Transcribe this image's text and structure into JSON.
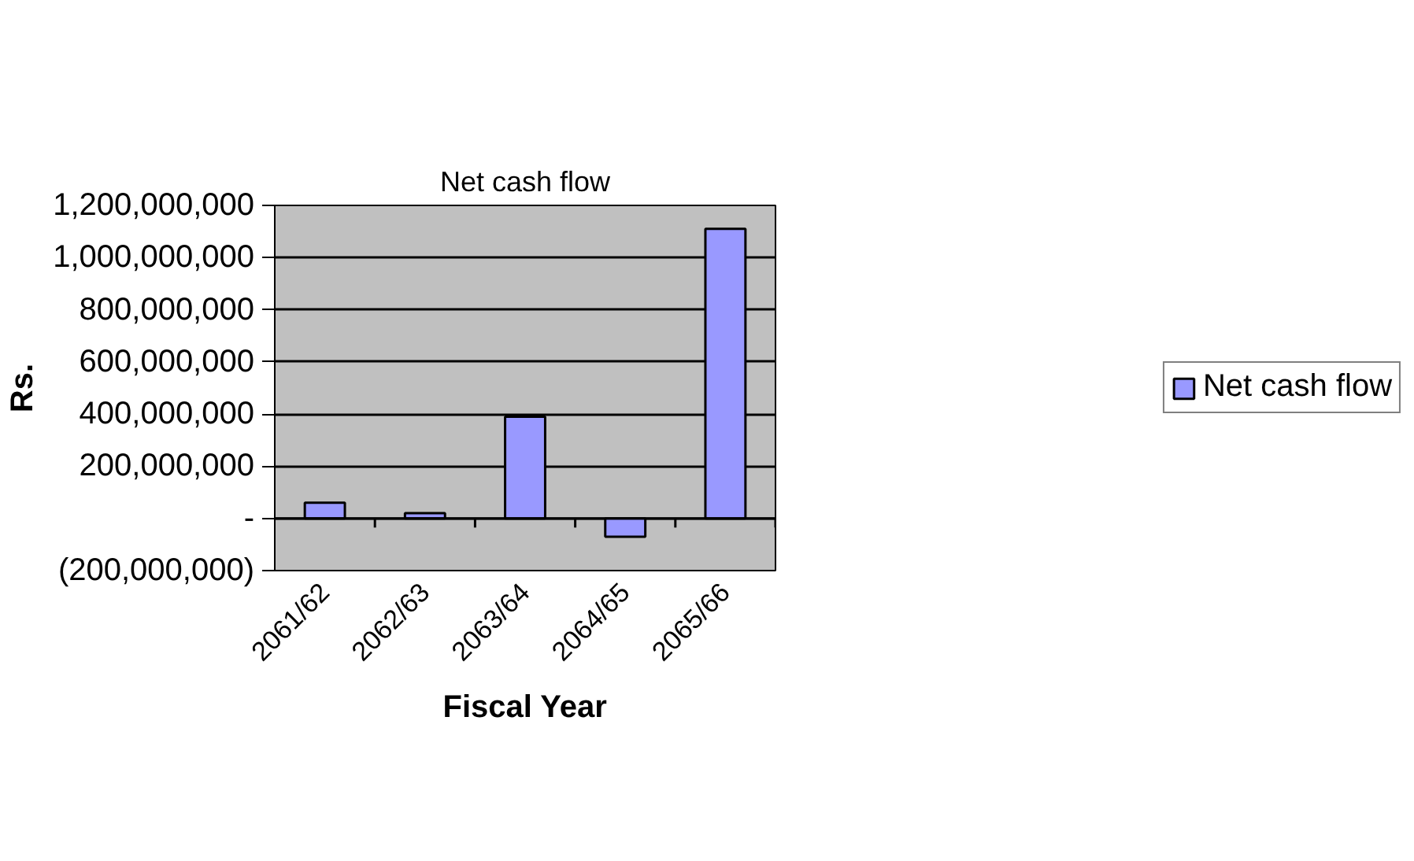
{
  "chart_data": {
    "type": "bar",
    "title": "Net cash flow",
    "xlabel": "Fiscal Year",
    "ylabel": "Rs.",
    "categories": [
      "2061/62",
      "2062/63",
      "2063/64",
      "2064/65",
      "2065/66"
    ],
    "series": [
      {
        "name": "Net cash flow",
        "color": "#9999ff",
        "values": [
          60000000,
          20000000,
          390000000,
          -70000000,
          1110000000
        ]
      }
    ],
    "ylim": [
      -200000000,
      1200000000
    ],
    "yticks": [
      {
        "value": -200000000,
        "label": "(200,000,000)"
      },
      {
        "value": 0,
        "label": "-"
      },
      {
        "value": 200000000,
        "label": "200,000,000"
      },
      {
        "value": 400000000,
        "label": "400,000,000"
      },
      {
        "value": 600000000,
        "label": "600,000,000"
      },
      {
        "value": 800000000,
        "label": "800,000,000"
      },
      {
        "value": 1000000000,
        "label": "1,000,000,000"
      },
      {
        "value": 1200000000,
        "label": "1,200,000,000"
      }
    ],
    "grid": "y",
    "legend": "right"
  }
}
